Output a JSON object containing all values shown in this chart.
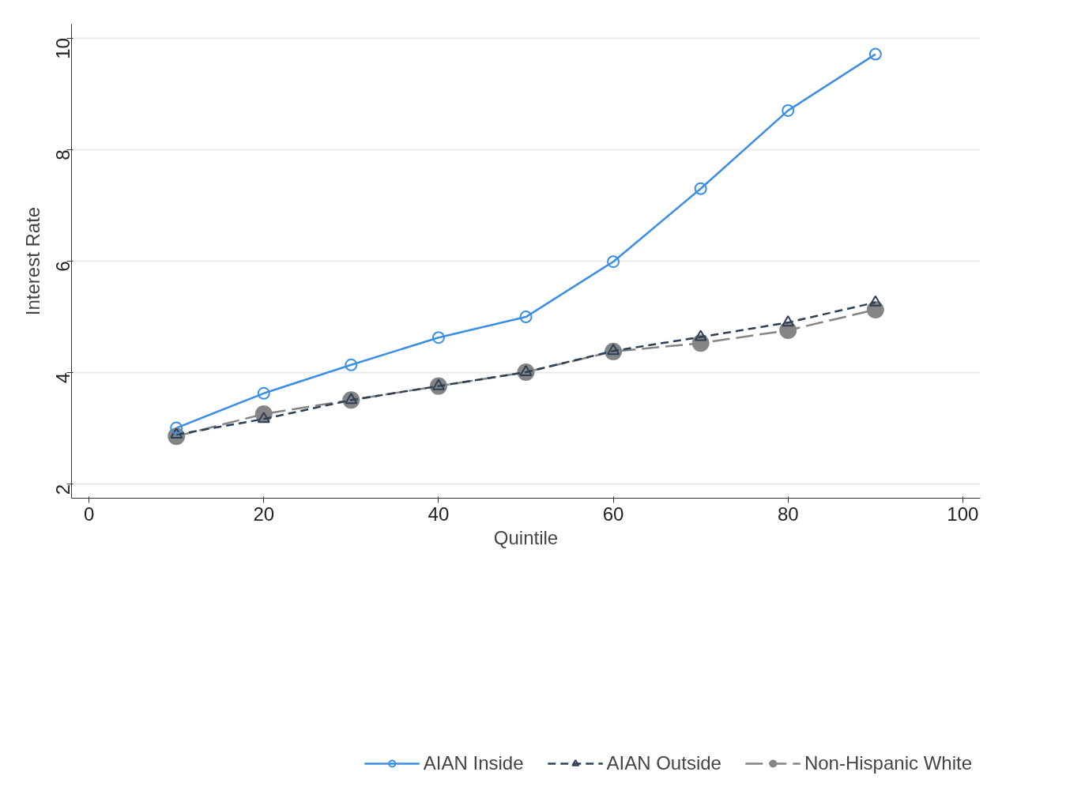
{
  "chart_data": {
    "type": "line",
    "xlabel": "Quintile",
    "ylabel": "Interest Rate",
    "x": [
      10,
      20,
      30,
      40,
      50,
      60,
      70,
      80,
      90
    ],
    "xlim": [
      -2,
      102
    ],
    "xticks": [
      0,
      20,
      40,
      60,
      80,
      100
    ],
    "ylim": [
      1.75,
      10.25
    ],
    "yticks": [
      2,
      4,
      6,
      8,
      10
    ],
    "grid": "y",
    "legend": "bottom",
    "series": [
      {
        "name": "AIAN Inside",
        "color": "#3a8ee6",
        "marker": "circle",
        "line_style": "solid",
        "values": [
          3.01,
          3.63,
          4.14,
          4.63,
          5.0,
          5.99,
          7.3,
          8.7,
          9.71
        ]
      },
      {
        "name": "AIAN Outside",
        "color": "#2e3f55",
        "marker": "triangle",
        "line_style": "dashed",
        "values": [
          2.89,
          3.17,
          3.51,
          3.76,
          4.01,
          4.39,
          4.64,
          4.9,
          5.26
        ]
      },
      {
        "name": "Non-Hispanic White",
        "color": "#858585",
        "marker": "circle_filled",
        "line_style": "longdash",
        "values": [
          2.86,
          3.26,
          3.51,
          3.76,
          4.01,
          4.38,
          4.53,
          4.76,
          5.13
        ]
      }
    ]
  }
}
